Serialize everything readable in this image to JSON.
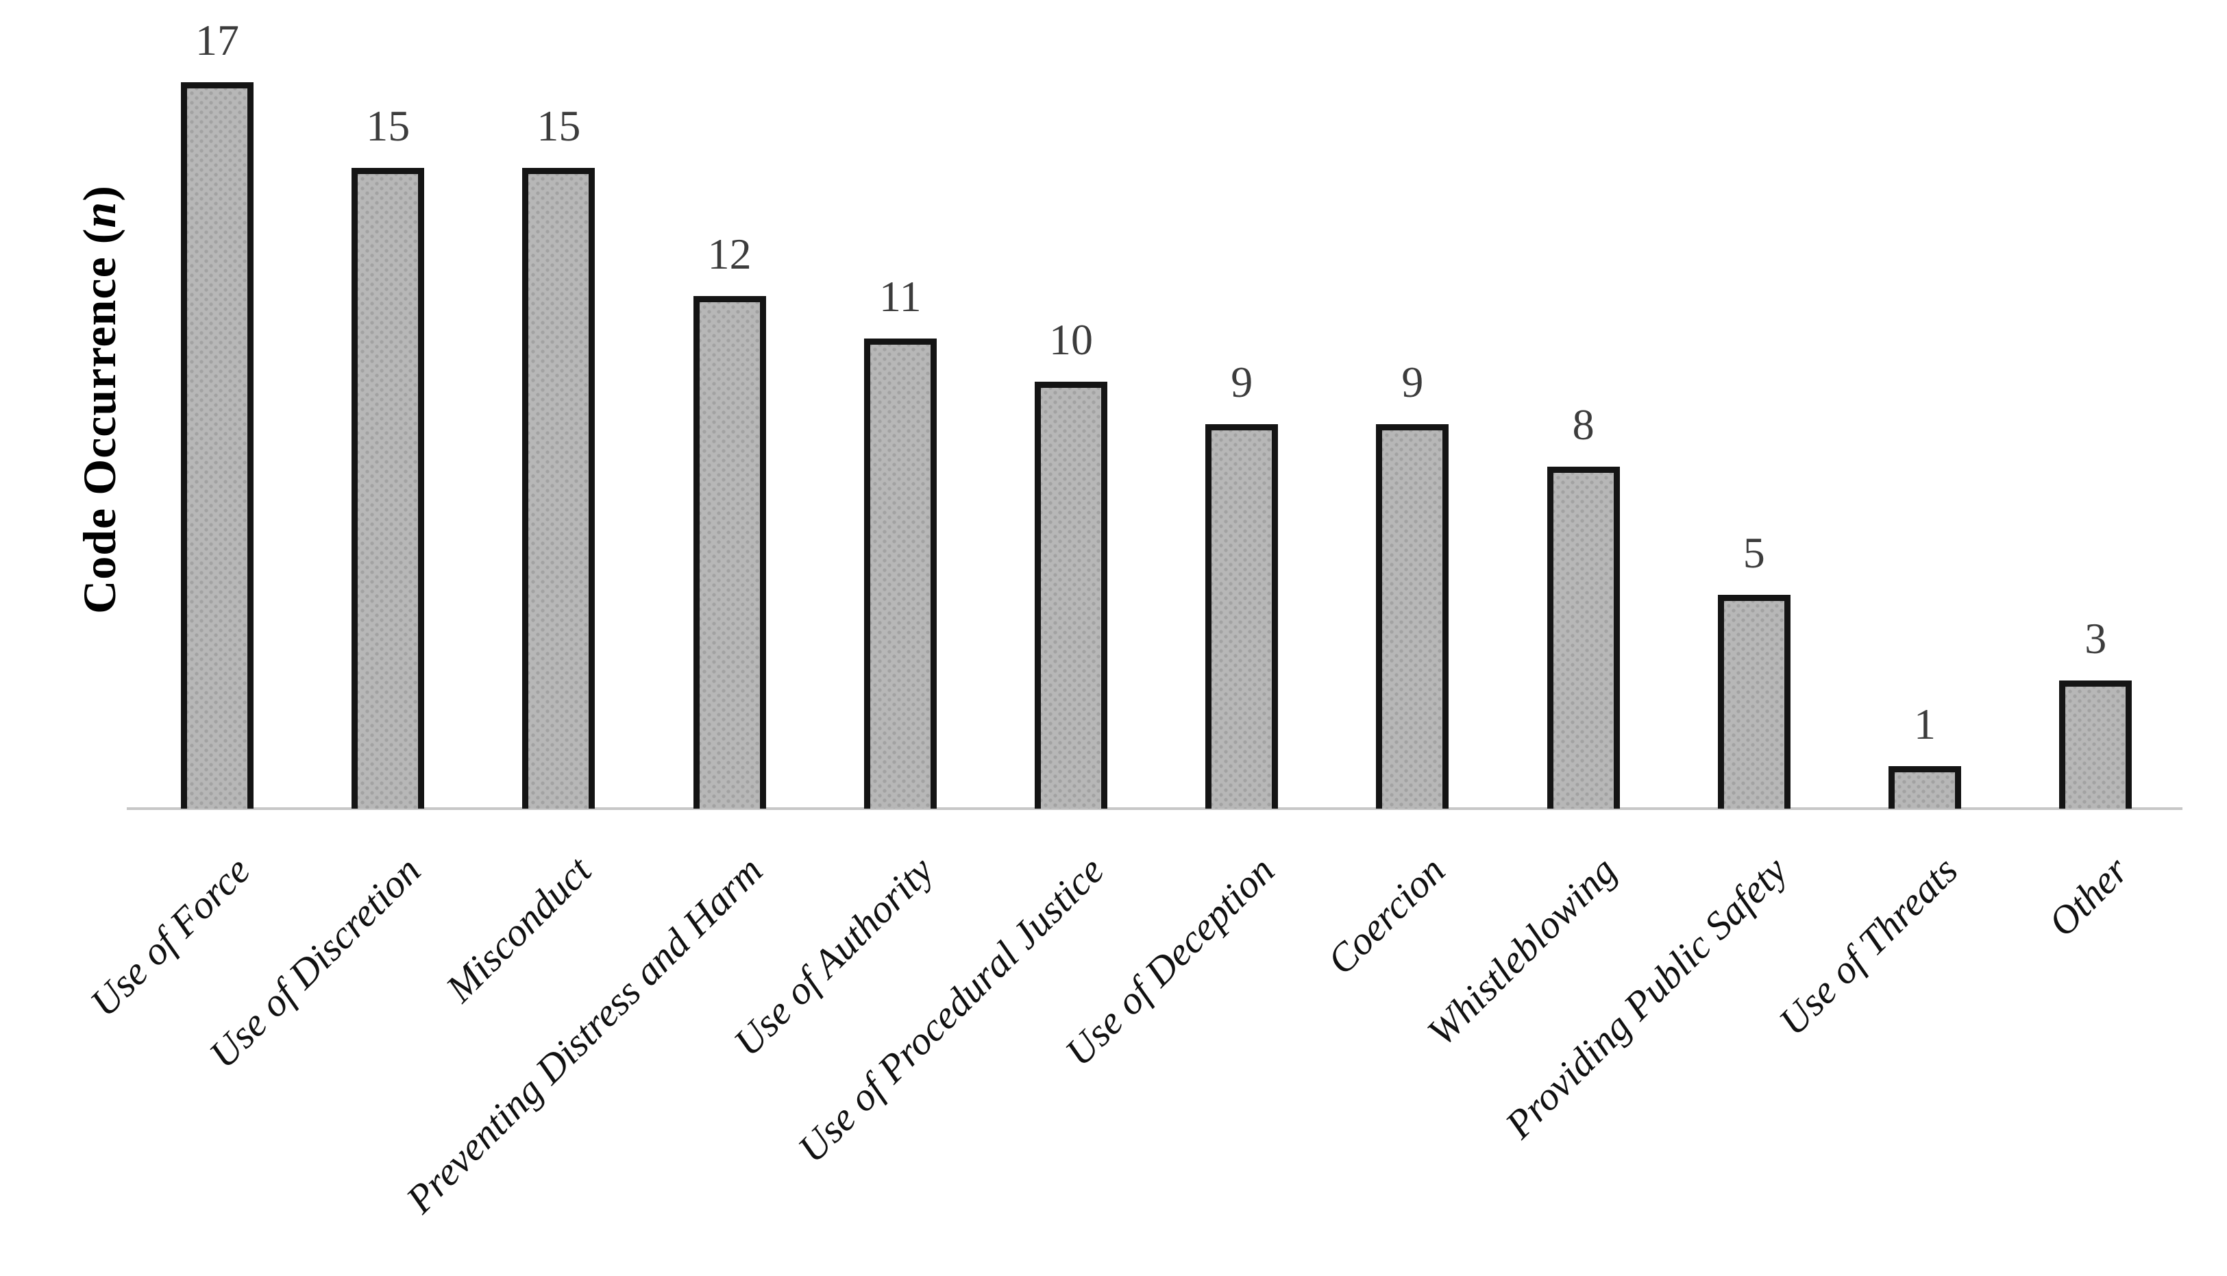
{
  "chart_data": {
    "type": "bar",
    "title": "",
    "xlabel": "",
    "ylabel": "Code Occurrence (n)",
    "ylabel_prefix": "Code Occurrence (",
    "ylabel_italic_n": "n",
    "ylabel_suffix": ")",
    "categories": [
      "Use of Force",
      "Use of Discretion",
      "Misconduct",
      "Preventing Distress and Harm",
      "Use of Authority",
      "Use of Procedural Justice",
      "Use of Deception",
      "Coercion",
      "Whistleblowing",
      "Providing Public Safety",
      "Use of Threats",
      "Other"
    ],
    "values": [
      17,
      15,
      15,
      12,
      11,
      10,
      9,
      9,
      8,
      5,
      1,
      3
    ],
    "ylim": [
      0,
      17
    ],
    "grid": false,
    "legend_position": "none",
    "value_labels_shown": true,
    "category_label_rotation_deg": -45,
    "colors": {
      "background": "#ffffff",
      "bar_fill": "#b7b7b7",
      "bar_dot": "#a2a2a2",
      "bar_border": "#141414",
      "value_label": "#3c3c3c",
      "category_label": "#111111",
      "axis_line": "#c7c7c7"
    }
  }
}
